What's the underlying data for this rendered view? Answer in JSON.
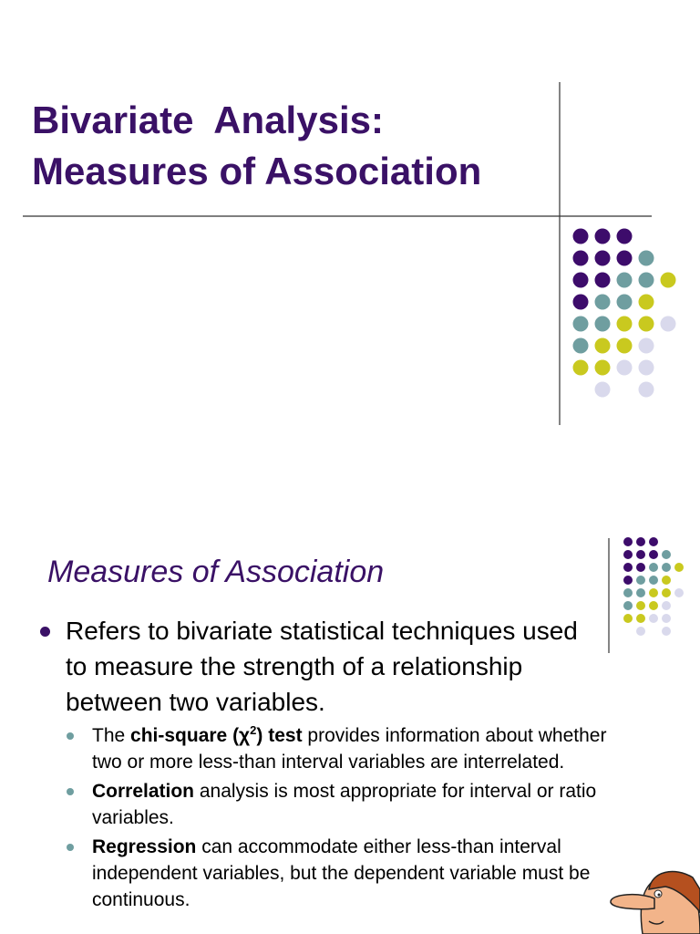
{
  "slide1": {
    "title": [
      "Bivariate  Analysis:",
      "Measures of Association"
    ]
  },
  "slide2": {
    "heading": "Measures of Association",
    "bullet": "Refers to bivariate statistical techniques used to measure the strength of a relationship between two variables.",
    "sub_bullets": [
      [
        {
          "text": "The ",
          "style": "normal"
        },
        {
          "text": "chi-square (χ",
          "style": "bold"
        },
        {
          "text": "2",
          "style": "bold-sup"
        },
        {
          "text": ") test",
          "style": "bold"
        },
        {
          "text": " provides information about whether two or more less-than interval variables are interrelated.",
          "style": "normal"
        }
      ],
      [
        {
          "text": "Correlation",
          "style": "bold"
        },
        {
          "text": " analysis is most appropriate for interval or ratio variables.",
          "style": "normal"
        }
      ],
      [
        {
          "text": "Regression",
          "style": "bold"
        },
        {
          "text": " can accommodate either less-than interval independent variables, but the dependent variable must be continuous.",
          "style": "normal"
        }
      ]
    ]
  }
}
